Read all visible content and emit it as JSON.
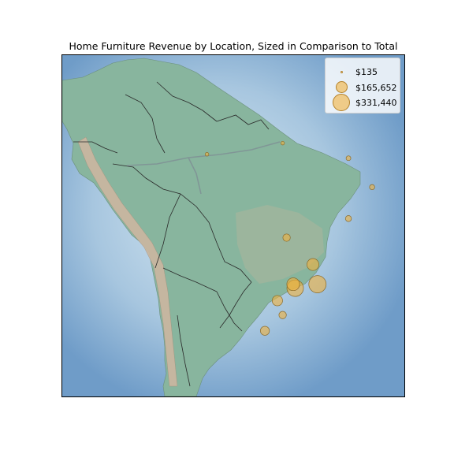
{
  "title": "Home Furniture Revenue by Location, Sized in Comparison to Total",
  "legend": {
    "entries": [
      {
        "label": "$135",
        "value": 135
      },
      {
        "label": "$165,652",
        "value": 165652
      },
      {
        "label": "$331,440",
        "value": 331440
      }
    ]
  },
  "colors": {
    "ocean": "#6f9cc8",
    "land": "#86b29a",
    "mountains": "#c8b39b",
    "borders": "#2a2a2a",
    "marker_fill": "#f2b23e",
    "marker_edge": "#8a6a2a"
  },
  "chart_data": {
    "type": "scatter",
    "region": "South America (Brazil focus)",
    "size_encodes": "revenue",
    "legend_placement": "top-right",
    "points": [
      {
        "lon": -43.2,
        "lat": -22.9,
        "value": 331440
      },
      {
        "lon": -46.6,
        "lat": -23.5,
        "value": 300000
      },
      {
        "lon": -46.9,
        "lat": -22.9,
        "value": 180000
      },
      {
        "lon": -43.9,
        "lat": -19.9,
        "value": 160000
      },
      {
        "lon": -49.3,
        "lat": -25.4,
        "value": 120000
      },
      {
        "lon": -47.9,
        "lat": -15.8,
        "value": 60000
      },
      {
        "lon": -51.2,
        "lat": -30.0,
        "value": 90000
      },
      {
        "lon": -48.5,
        "lat": -27.6,
        "value": 60000
      },
      {
        "lon": -38.5,
        "lat": -12.9,
        "value": 40000
      },
      {
        "lon": -34.9,
        "lat": -8.1,
        "value": 30000
      },
      {
        "lon": -38.5,
        "lat": -3.7,
        "value": 25000
      },
      {
        "lon": -60.0,
        "lat": -3.1,
        "value": 15000
      },
      {
        "lon": -48.5,
        "lat": -1.4,
        "value": 15000
      }
    ]
  }
}
